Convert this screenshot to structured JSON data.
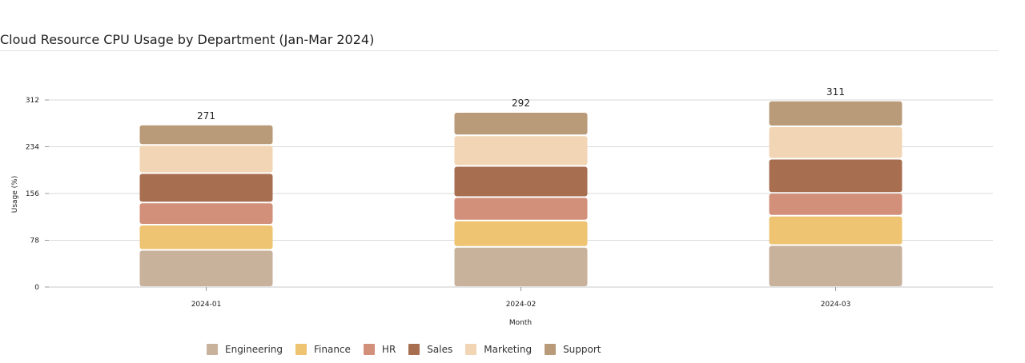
{
  "chart_data": {
    "type": "bar",
    "stacked": true,
    "title": "Cloud Resource CPU Usage by Department (Jan-Mar 2024)",
    "xlabel": "Month",
    "ylabel": "Usage (%)",
    "categories": [
      "2024-01",
      "2024-02",
      "2024-03"
    ],
    "ylim": [
      0,
      312
    ],
    "yticks": [
      0,
      78,
      156,
      234,
      312
    ],
    "grid": true,
    "legend_position": "bottom",
    "totals": [
      271,
      292,
      311
    ],
    "series": [
      {
        "name": "Engineering",
        "color": "#c8b29c",
        "values": [
          62,
          67,
          70
        ]
      },
      {
        "name": "Finance",
        "color": "#eec472",
        "values": [
          42,
          44,
          49
        ]
      },
      {
        "name": "HR",
        "color": "#d28f79",
        "values": [
          37,
          39,
          38
        ]
      },
      {
        "name": "Sales",
        "color": "#a86e50",
        "values": [
          49,
          52,
          57
        ]
      },
      {
        "name": "Marketing",
        "color": "#f2d5b4",
        "values": [
          47,
          51,
          54
        ]
      },
      {
        "name": "Support",
        "color": "#b99b7a",
        "values": [
          34,
          39,
          43
        ]
      }
    ]
  }
}
